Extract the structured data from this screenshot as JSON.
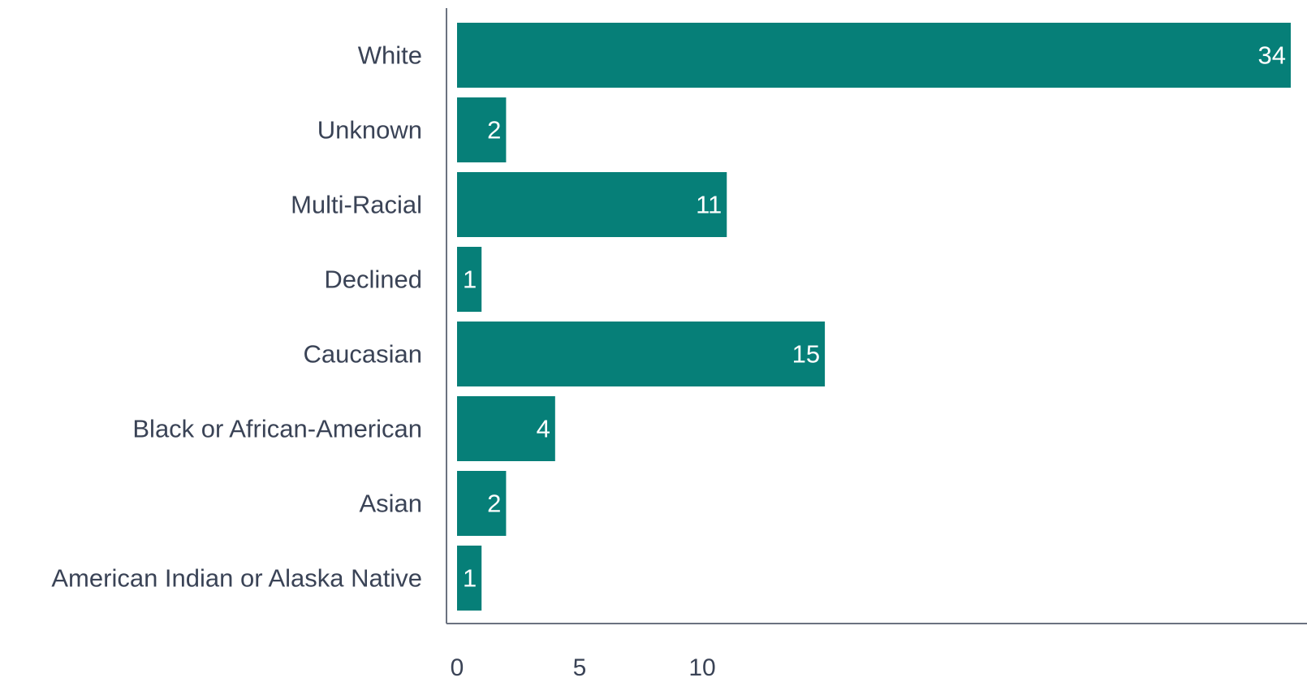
{
  "chart_data": {
    "type": "bar",
    "orientation": "horizontal",
    "categories": [
      "White",
      "Unknown",
      "Multi-Racial",
      "Declined",
      "Caucasian",
      "Black or African-American",
      "Asian",
      "American Indian or Alaska Native"
    ],
    "values": [
      34,
      2,
      11,
      1,
      15,
      4,
      2,
      1
    ],
    "data_labels": [
      "34",
      "2",
      "11",
      "1",
      "15",
      "4",
      "2",
      "1"
    ],
    "x_ticks": [
      0,
      5,
      10
    ],
    "x_tick_labels": [
      "0",
      "5",
      "10"
    ],
    "xlim": [
      0,
      34
    ],
    "bar_color": "#067f78",
    "axis_color": "#6b7280",
    "text_color": "#3a4356",
    "grid": false,
    "legend": false
  }
}
